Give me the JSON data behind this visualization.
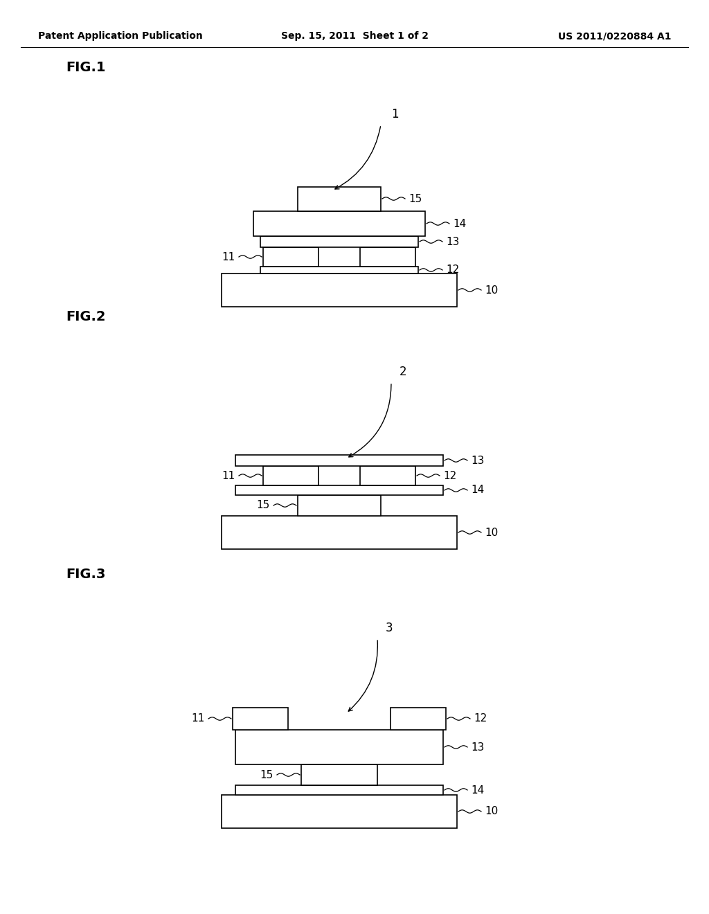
{
  "bg_color": "#ffffff",
  "header_left": "Patent Application Publication",
  "header_center": "Sep. 15, 2011  Sheet 1 of 2",
  "header_right": "US 2011/0220884 A1",
  "fig1_label": "FIG.1",
  "fig2_label": "FIG.2",
  "fig3_label": "FIG.3",
  "line_color": "#000000"
}
